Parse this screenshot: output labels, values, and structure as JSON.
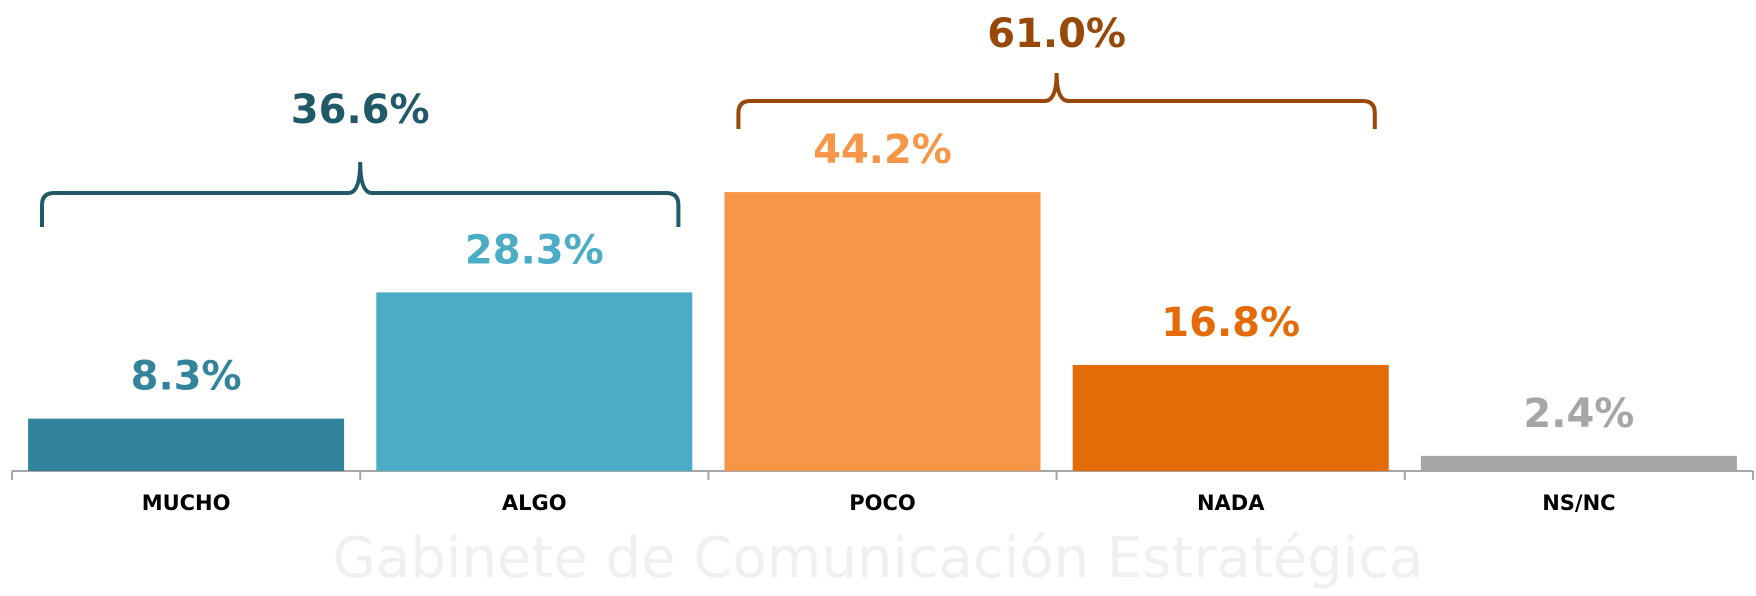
{
  "chart_data": {
    "type": "bar",
    "categories": [
      "MUCHO",
      "ALGO",
      "POCO",
      "NADA",
      "NS/NC"
    ],
    "values": [
      8.3,
      28.3,
      44.2,
      16.8,
      2.4
    ],
    "value_labels": [
      "8.3%",
      "28.3%",
      "44.2%",
      "16.8%",
      "2.4%"
    ],
    "colors": [
      "#31849b",
      "#4bacc6",
      "#f79646",
      "#e36c09",
      "#a6a6a6"
    ],
    "brackets": [
      {
        "from": "MUCHO",
        "to": "ALGO",
        "value": 36.6,
        "label": "36.6%",
        "color": "#215968"
      },
      {
        "from": "POCO",
        "to": "NADA",
        "value": 61.0,
        "label": "61.0%",
        "color": "#984807"
      }
    ],
    "watermark": "Gabinete de Comunicación Estratégica"
  }
}
